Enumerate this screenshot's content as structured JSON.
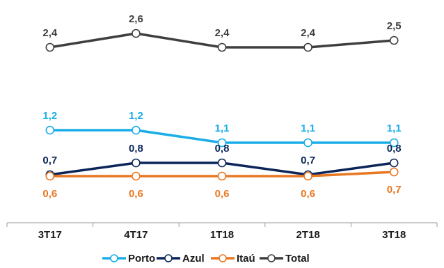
{
  "chart_data": {
    "type": "line",
    "categories": [
      "3T17",
      "4T17",
      "1T18",
      "2T18",
      "3T18"
    ],
    "series": [
      {
        "name": "Porto",
        "color": "#1AADE8",
        "values": [
          1.2,
          1.2,
          1.1,
          1.1,
          1.1
        ],
        "labels": [
          "1,2",
          "1,2",
          "1,1",
          "1,1",
          "1,1"
        ]
      },
      {
        "name": "Azul",
        "color": "#0B2559",
        "values": [
          0.7,
          0.8,
          0.8,
          0.7,
          0.8
        ],
        "labels": [
          "0,7",
          "0,8",
          "0,8",
          "0,7",
          "0,8"
        ]
      },
      {
        "name": "Itaú",
        "color": "#E87722",
        "values": [
          0.6,
          0.6,
          0.6,
          0.6,
          0.7
        ],
        "labels": [
          "0,6",
          "0,6",
          "0,6",
          "0,6",
          "0,7"
        ]
      },
      {
        "name": "Total",
        "color": "#3F3F3F",
        "values": [
          2.4,
          2.6,
          2.4,
          2.4,
          2.5
        ],
        "labels": [
          "2,4",
          "2,6",
          "2,4",
          "2,4",
          "2,5"
        ]
      }
    ],
    "title": "",
    "xlabel": "",
    "ylabel": "",
    "grid": false,
    "legend_position": "bottom"
  }
}
